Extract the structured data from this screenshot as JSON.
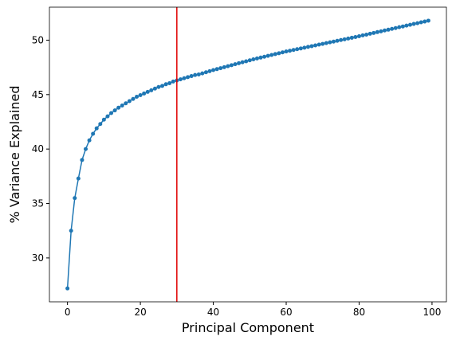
{
  "chart_data": {
    "type": "line",
    "x_label": "Principal Component",
    "y_label": "% Variance Explained",
    "x": [
      0,
      1,
      2,
      3,
      4,
      5,
      6,
      7,
      8,
      9,
      10,
      11,
      12,
      13,
      14,
      15,
      16,
      17,
      18,
      19,
      20,
      21,
      22,
      23,
      24,
      25,
      26,
      27,
      28,
      29,
      30,
      31,
      32,
      33,
      34,
      35,
      36,
      37,
      38,
      39,
      40,
      41,
      42,
      43,
      44,
      45,
      46,
      47,
      48,
      49,
      50,
      51,
      52,
      53,
      54,
      55,
      56,
      57,
      58,
      59,
      60,
      61,
      62,
      63,
      64,
      65,
      66,
      67,
      68,
      69,
      70,
      71,
      72,
      73,
      74,
      75,
      76,
      77,
      78,
      79,
      80,
      81,
      82,
      83,
      84,
      85,
      86,
      87,
      88,
      89,
      90,
      91,
      92,
      93,
      94,
      95,
      96,
      97,
      98,
      99
    ],
    "values": [
      27.2,
      32.5,
      35.5,
      37.3,
      39.0,
      40.0,
      40.8,
      41.4,
      41.9,
      42.3,
      42.7,
      43.0,
      43.3,
      43.55,
      43.8,
      44.0,
      44.2,
      44.4,
      44.6,
      44.8,
      44.95,
      45.1,
      45.25,
      45.4,
      45.55,
      45.7,
      45.8,
      45.95,
      46.05,
      46.2,
      46.3,
      46.4,
      46.5,
      46.6,
      46.7,
      46.8,
      46.85,
      46.95,
      47.05,
      47.15,
      47.25,
      47.34,
      47.43,
      47.52,
      47.61,
      47.7,
      47.79,
      47.88,
      47.97,
      48.06,
      48.15,
      48.24,
      48.32,
      48.4,
      48.48,
      48.56,
      48.64,
      48.72,
      48.8,
      48.88,
      48.96,
      49.03,
      49.1,
      49.17,
      49.24,
      49.31,
      49.38,
      49.45,
      49.52,
      49.59,
      49.66,
      49.73,
      49.8,
      49.87,
      49.94,
      50.01,
      50.08,
      50.15,
      50.22,
      50.29,
      50.36,
      50.44,
      50.51,
      50.59,
      50.66,
      50.74,
      50.81,
      50.89,
      50.96,
      51.04,
      51.11,
      51.19,
      51.26,
      51.34,
      51.41,
      51.49,
      51.56,
      51.64,
      51.71,
      51.79
    ],
    "color": "#1f77b4",
    "vline": {
      "x": 30,
      "color": "#e00000"
    },
    "xlim": [
      -4.95,
      103.95
    ],
    "xticks": [
      0,
      20,
      40,
      60,
      80,
      100
    ],
    "ylim": [
      25.97,
      53.03
    ],
    "yticks": [
      30,
      35,
      40,
      45,
      50
    ]
  }
}
